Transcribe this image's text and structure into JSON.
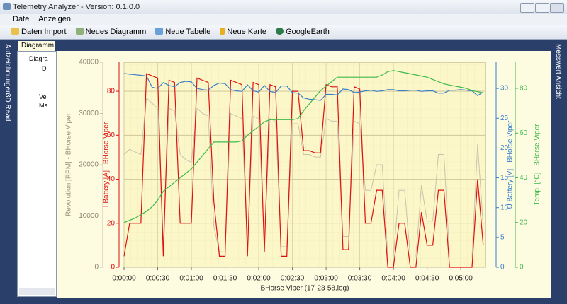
{
  "window": {
    "title": "Telemetry Analyzer - Version: 0.1.0.0"
  },
  "menu": [
    "Datei",
    "Anzeigen"
  ],
  "toolbar": [
    "Daten Import",
    "Neues Diagramm",
    "Neue Tabelle",
    "Neue Karte",
    "GoogleEarth"
  ],
  "side_tabs_left": [
    "Aufzeichnungen",
    "3D Read"
  ],
  "side_tabs_right": [
    "Messwert Ansicht"
  ],
  "document_tab": "Diagramm",
  "tree": [
    "Diagra",
    "Di",
    "Ve",
    "Ma"
  ],
  "chart_data": {
    "type": "line",
    "x_label": "BHorse Viper (17-23-58.log)",
    "x": [
      0,
      5,
      10,
      15,
      20,
      25,
      30,
      35,
      40,
      45,
      50,
      55,
      60,
      65,
      70,
      75,
      80,
      85,
      90,
      95,
      100,
      105,
      110,
      115,
      120,
      125,
      130,
      135,
      140,
      145,
      150,
      155,
      160,
      165,
      170,
      175,
      180,
      185,
      190,
      195,
      200,
      205,
      210,
      215,
      220,
      225,
      230,
      235,
      240,
      245,
      250,
      255,
      260,
      265,
      270,
      275,
      280,
      285,
      290,
      295,
      300,
      305,
      310,
      315,
      320
    ],
    "xlim": [
      0,
      322
    ],
    "xticks": [
      {
        "value": 0,
        "label": "0:00:00"
      },
      {
        "value": 30,
        "label": "0:00:30"
      },
      {
        "value": 60,
        "label": "0:01:00"
      },
      {
        "value": 90,
        "label": "0:01:30"
      },
      {
        "value": 120,
        "label": "0:02:00"
      },
      {
        "value": 150,
        "label": "0:02:30"
      },
      {
        "value": 180,
        "label": "0:03:00"
      },
      {
        "value": 210,
        "label": "0:03:30"
      },
      {
        "value": 240,
        "label": "0:04:00"
      },
      {
        "value": 270,
        "label": "0:04:30"
      },
      {
        "value": 300,
        "label": "0:05:00"
      }
    ],
    "ylim": [
      0,
      40000
    ],
    "yticks": [
      0,
      10000,
      20000,
      30000,
      40000
    ],
    "y2lim": [
      0,
      93.2
    ],
    "y2ticks": [
      0,
      20,
      40,
      60,
      80
    ],
    "y3lim": [
      0,
      34.4
    ],
    "y3ticks": [
      0,
      5,
      10,
      15,
      20,
      25,
      30
    ],
    "y4lim": [
      0,
      91.7
    ],
    "y4ticks": [
      0,
      20,
      40,
      60,
      80
    ],
    "grid": true,
    "series": [
      {
        "name": "Revolution [RPM] - BHorse Viper",
        "color": "#c9c2ad",
        "axis": "y",
        "values": [
          22000,
          23000,
          22500,
          22000,
          33000,
          32000,
          31000,
          5000,
          31000,
          30500,
          22000,
          21000,
          20500,
          31000,
          30000,
          29500,
          8000,
          3000,
          3000,
          30000,
          29500,
          29000,
          4000,
          29500,
          29000,
          5000,
          29000,
          28500,
          4000,
          4000,
          28000,
          28000,
          22000,
          22000,
          21500,
          21500,
          29000,
          28500,
          28500,
          6000,
          6000,
          28500,
          28000,
          15000,
          15000,
          20000,
          20000,
          2000,
          2000,
          15000,
          15000,
          2000,
          2000,
          16000,
          9000,
          9000,
          22000,
          22000,
          2000,
          2000,
          2000,
          2000,
          2000,
          24000,
          8000
        ]
      },
      {
        "name": "I Battery [A] - BHorse Viper",
        "color": "#e01010",
        "axis": "y2",
        "values": [
          5,
          20,
          20,
          20,
          88,
          87,
          86,
          5,
          85,
          84,
          20,
          20,
          20,
          86,
          85,
          84,
          30,
          5,
          5,
          85,
          84,
          83,
          5,
          84,
          83,
          7,
          83,
          82,
          5,
          5,
          80,
          80,
          53,
          53,
          52,
          52,
          83,
          82,
          82,
          8,
          8,
          82,
          81,
          20,
          20,
          35,
          35,
          0,
          0,
          20,
          20,
          0,
          0,
          25,
          10,
          10,
          35,
          35,
          0,
          0,
          0,
          0,
          0,
          40,
          10
        ]
      },
      {
        "name": "U Battery [V] - BHorse Viper",
        "color": "#3a7fc8",
        "axis": "y3",
        "values": [
          32.5,
          32.4,
          32.3,
          32.2,
          32.1,
          30.2,
          30.0,
          31.0,
          30.5,
          30.3,
          31.0,
          31.2,
          31.1,
          30.0,
          29.8,
          29.7,
          30.5,
          30.9,
          30.8,
          29.8,
          29.6,
          29.5,
          30.6,
          29.6,
          29.4,
          30.5,
          29.5,
          29.3,
          30.4,
          30.4,
          29.3,
          29.2,
          28.4,
          28.2,
          28.1,
          28.0,
          29.0,
          29.0,
          28.9,
          29.9,
          29.8,
          29.3,
          29.4,
          29.6,
          29.7,
          29.5,
          29.6,
          29.8,
          29.8,
          29.6,
          29.6,
          29.7,
          29.7,
          29.5,
          29.6,
          29.6,
          29.2,
          29.2,
          29.7,
          29.7,
          29.8,
          29.7,
          29.6,
          28.8,
          29.4
        ]
      },
      {
        "name": "Temp. [°C] - BHorse Viper",
        "color": "#3cb94a",
        "axis": "y4",
        "values": [
          20,
          21,
          22,
          23.5,
          25,
          27,
          30,
          34,
          36,
          38,
          40,
          42,
          44,
          47,
          50,
          53,
          56,
          56,
          56,
          56,
          56,
          56.5,
          59,
          61,
          63,
          65,
          66,
          66,
          66,
          66,
          66,
          66.5,
          70,
          73,
          76,
          79,
          81,
          83,
          85,
          85,
          85,
          85,
          85,
          85,
          85,
          85,
          86,
          87.5,
          88,
          87.5,
          87,
          86.5,
          86,
          85.5,
          85,
          84,
          83,
          82,
          81.5,
          81,
          80.5,
          80,
          79,
          78.5,
          78
        ]
      }
    ]
  }
}
